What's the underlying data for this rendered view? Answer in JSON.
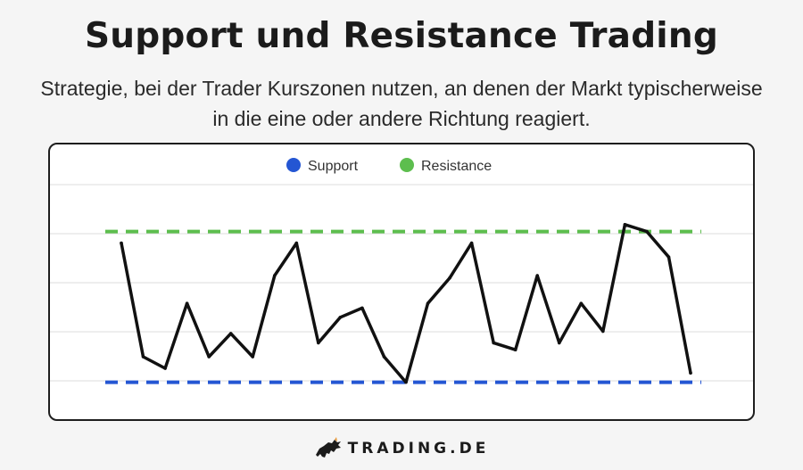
{
  "header": {
    "title": "Support und Resistance Trading",
    "subtitle": "Strategie, bei der Trader Kurszonen nutzen, an denen der Markt typischerweise in die eine oder andere Richtung reagiert."
  },
  "chart_data": {
    "type": "line",
    "title": "",
    "xlabel": "",
    "ylabel": "",
    "grid": true,
    "legend_placement": "top-center",
    "ylim": [
      0,
      10
    ],
    "legend": [
      {
        "name": "Support",
        "color": "#2456d3"
      },
      {
        "name": "Resistance",
        "color": "#5dbe4e"
      }
    ],
    "support_level": 0.9,
    "resistance_level": 7.4,
    "price": {
      "color": "#111111",
      "values": [
        6.9,
        2.0,
        1.5,
        4.3,
        2.0,
        3.0,
        2.0,
        5.5,
        6.9,
        2.6,
        3.7,
        4.1,
        2.0,
        0.9,
        4.3,
        5.4,
        6.9,
        2.6,
        2.3,
        5.5,
        2.6,
        4.3,
        3.1,
        7.7,
        7.4,
        6.3,
        1.3
      ]
    }
  },
  "branding": {
    "logo_text": "TRADING.DE",
    "logo_icon": "bull-icon",
    "accent": "#e89a3c"
  }
}
